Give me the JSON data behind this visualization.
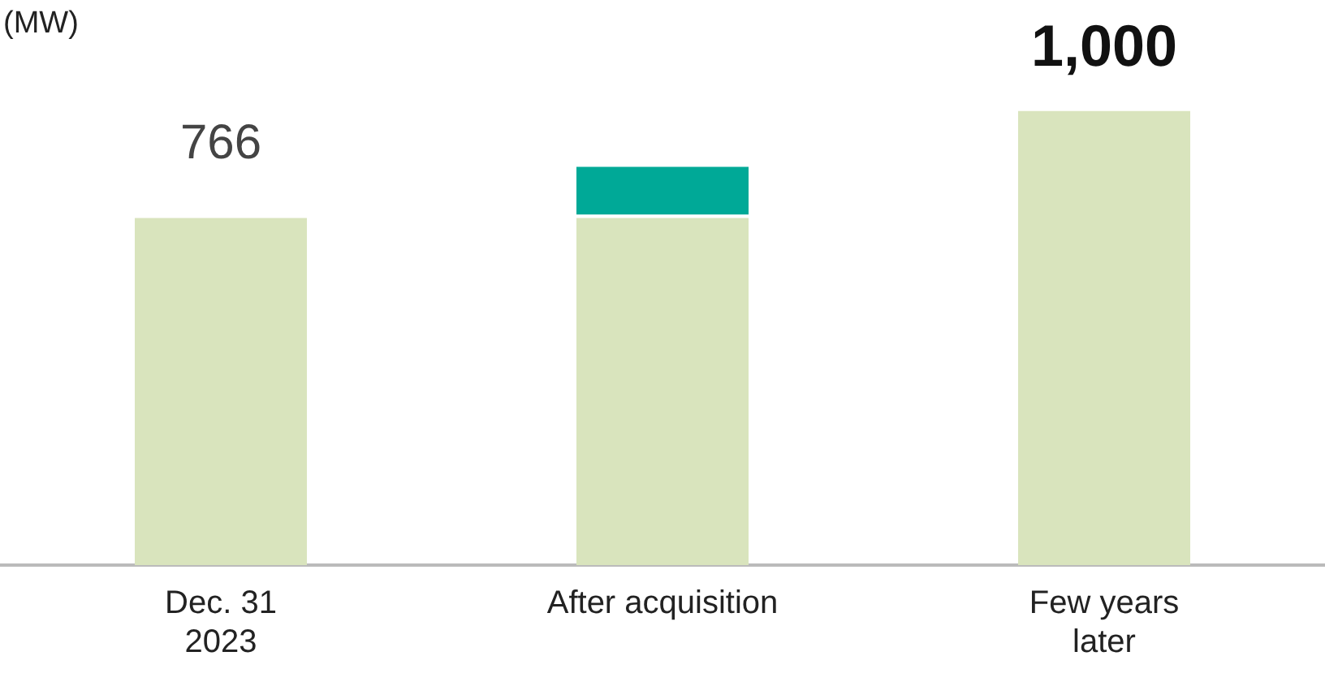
{
  "chart_data": {
    "type": "bar",
    "stacked": true,
    "ylabel": "(MW)",
    "categories": [
      "Dec. 31\n2023",
      "After acquisition",
      "Few years\nlater"
    ],
    "series": [
      {
        "color": "#d9e4bd",
        "values": [
          766,
          766,
          1000
        ],
        "value_labels": [
          "766",
          null,
          "1,000"
        ]
      },
      {
        "color": "#00a997",
        "values": [
          null,
          112,
          null
        ]
      }
    ],
    "grid": false,
    "legend": false
  }
}
